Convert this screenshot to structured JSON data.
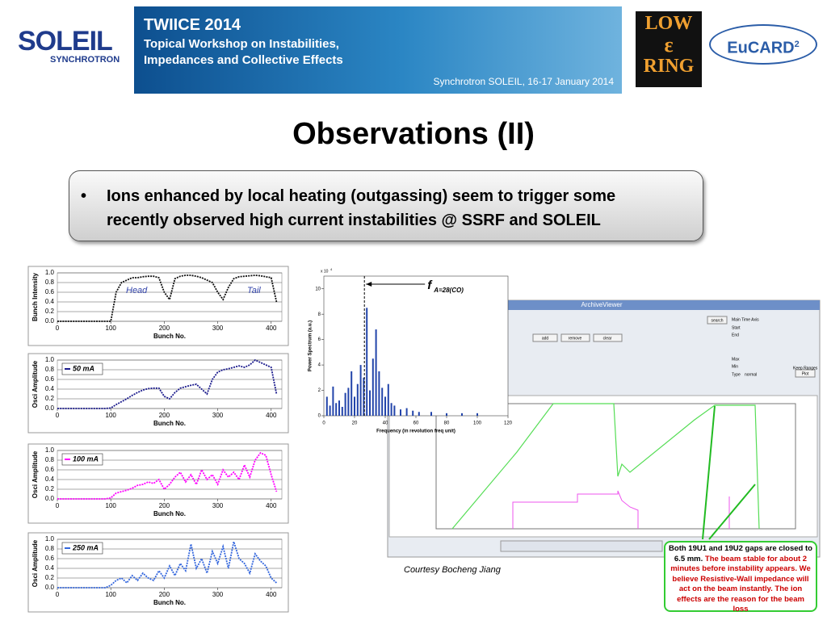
{
  "header": {
    "soleil": "SOLEIL",
    "soleil_sub": "SYNCHROTRON",
    "banner_title": "TWIICE 2014",
    "banner_line1": "Topical Workshop on Instabilities,",
    "banner_line2": "Impedances and Collective Effects",
    "banner_venue": "Synchrotron SOLEIL, 16-17 January 2014",
    "ring_top": "LOW",
    "ring_mid": "ε",
    "ring_bottom": "RING",
    "eucard": "EuCARD",
    "eucard_sup": "2"
  },
  "title": "Observations (II)",
  "bullet": "Ions enhanced by local heating (outgassing) seem to trigger some recently observed high current instabilities @ SSRF and SOLEIL",
  "chart_data": [
    {
      "type": "line",
      "y_label": "Bunch Intensity",
      "x_label": "Bunch No.",
      "annotations": [
        "Head",
        "Tail"
      ],
      "x": [
        0,
        10,
        20,
        30,
        40,
        50,
        60,
        70,
        80,
        90,
        100,
        110,
        120,
        130,
        140,
        150,
        160,
        170,
        180,
        190,
        200,
        210,
        220,
        230,
        240,
        250,
        260,
        270,
        280,
        290,
        300,
        310,
        320,
        330,
        340,
        350,
        360,
        370,
        380,
        390,
        400,
        410
      ],
      "series": [
        {
          "color": "#111111",
          "values": [
            0,
            0,
            0,
            0,
            0,
            0,
            0,
            0,
            0,
            0,
            0,
            0.6,
            0.8,
            0.85,
            0.9,
            0.9,
            0.92,
            0.93,
            0.93,
            0.9,
            0.6,
            0.45,
            0.88,
            0.93,
            0.95,
            0.95,
            0.93,
            0.9,
            0.85,
            0.8,
            0.6,
            0.45,
            0.7,
            0.88,
            0.92,
            0.93,
            0.94,
            0.95,
            0.94,
            0.92,
            0.9,
            0.4
          ]
        }
      ],
      "xlim": [
        0,
        420
      ],
      "xticks": [
        0,
        100,
        200,
        300,
        400
      ],
      "ylim": [
        0,
        1
      ],
      "yticks": [
        {
          "value": 0,
          "label": "0.0"
        },
        0.2,
        0.4,
        0.6,
        0.8,
        {
          "value": 1,
          "label": "1.0"
        }
      ],
      "grid": true
    },
    {
      "type": "line",
      "y_label": "Osci Amplitude",
      "x_label": "Bunch No.",
      "x": [
        0,
        10,
        20,
        30,
        40,
        50,
        60,
        70,
        80,
        90,
        100,
        110,
        120,
        130,
        140,
        150,
        160,
        170,
        180,
        190,
        200,
        210,
        220,
        230,
        240,
        250,
        260,
        270,
        280,
        290,
        300,
        310,
        320,
        330,
        340,
        350,
        360,
        370,
        380,
        390,
        400,
        410
      ],
      "series": [
        {
          "name": "50 mA",
          "color": "#1a1a8c",
          "values": [
            0,
            0,
            0,
            0,
            0,
            0,
            0,
            0,
            0,
            0,
            0.01,
            0.08,
            0.14,
            0.2,
            0.27,
            0.33,
            0.38,
            0.41,
            0.42,
            0.42,
            0.25,
            0.2,
            0.33,
            0.42,
            0.45,
            0.48,
            0.5,
            0.4,
            0.3,
            0.6,
            0.75,
            0.8,
            0.82,
            0.85,
            0.88,
            0.85,
            0.9,
            1.0,
            0.95,
            0.9,
            0.85,
            0.3
          ]
        }
      ],
      "xlim": [
        0,
        420
      ],
      "xticks": [
        0,
        100,
        200,
        300,
        400
      ],
      "ylim": [
        0,
        1
      ],
      "yticks": [
        {
          "value": 0,
          "label": "0.0"
        },
        0.2,
        0.4,
        0.6,
        0.8,
        {
          "value": 1,
          "label": "1.0"
        }
      ],
      "grid": true
    },
    {
      "type": "line",
      "y_label": "Osci Amplitude",
      "x_label": "Bunch No.",
      "x": [
        0,
        10,
        20,
        30,
        40,
        50,
        60,
        70,
        80,
        90,
        100,
        110,
        120,
        130,
        140,
        150,
        160,
        170,
        180,
        190,
        200,
        210,
        220,
        230,
        240,
        250,
        260,
        270,
        280,
        290,
        300,
        310,
        320,
        330,
        340,
        350,
        360,
        370,
        380,
        390,
        400,
        410
      ],
      "series": [
        {
          "name": "100 mA",
          "color": "#ff00ff",
          "values": [
            0,
            0,
            0,
            0,
            0,
            0,
            0,
            0,
            0,
            0,
            0.02,
            0.12,
            0.15,
            0.18,
            0.22,
            0.28,
            0.3,
            0.35,
            0.32,
            0.4,
            0.2,
            0.3,
            0.45,
            0.55,
            0.35,
            0.5,
            0.3,
            0.6,
            0.4,
            0.5,
            0.3,
            0.6,
            0.45,
            0.55,
            0.4,
            0.7,
            0.45,
            0.8,
            0.95,
            0.9,
            0.5,
            0.15
          ]
        }
      ],
      "xlim": [
        0,
        420
      ],
      "xticks": [
        0,
        100,
        200,
        300,
        400
      ],
      "ylim": [
        0,
        1
      ],
      "yticks": [
        {
          "value": 0,
          "label": "0.0"
        },
        0.2,
        0.4,
        0.6,
        0.8,
        {
          "value": 1,
          "label": "1.0"
        }
      ],
      "grid": true
    },
    {
      "type": "line",
      "y_label": "Osci Amplitude",
      "x_label": "Bunch No.",
      "x": [
        0,
        10,
        20,
        30,
        40,
        50,
        60,
        70,
        80,
        90,
        100,
        110,
        120,
        130,
        140,
        150,
        160,
        170,
        180,
        190,
        200,
        210,
        220,
        230,
        240,
        250,
        260,
        270,
        280,
        290,
        300,
        310,
        320,
        330,
        340,
        350,
        360,
        370,
        380,
        390,
        400,
        410
      ],
      "series": [
        {
          "name": "250 mA",
          "color": "#3366dd",
          "values": [
            0,
            0,
            0,
            0,
            0,
            0,
            0,
            0,
            0,
            0,
            0.05,
            0.15,
            0.2,
            0.1,
            0.25,
            0.15,
            0.3,
            0.2,
            0.15,
            0.35,
            0.2,
            0.45,
            0.25,
            0.5,
            0.35,
            0.9,
            0.4,
            0.6,
            0.3,
            0.75,
            0.5,
            0.85,
            0.4,
            0.95,
            0.6,
            0.5,
            0.3,
            0.7,
            0.55,
            0.45,
            0.2,
            0.1
          ]
        }
      ],
      "xlim": [
        0,
        420
      ],
      "xticks": [
        0,
        100,
        200,
        300,
        400
      ],
      "ylim": [
        0,
        1
      ],
      "yticks": [
        {
          "value": 0,
          "label": "0.0"
        },
        0.2,
        0.4,
        0.6,
        0.8,
        {
          "value": 1,
          "label": "1.0"
        }
      ],
      "grid": true
    },
    {
      "type": "bar",
      "y_label": "Power Spectrum (a.u.)",
      "x_label": "Frequency (in revolution freq unit)",
      "y_multiplier": "x 10",
      "y_multiplier_exp": "4",
      "annotation": "f",
      "annotation_sub": "A=28(CO)",
      "x": [
        2,
        4,
        6,
        8,
        10,
        12,
        14,
        16,
        18,
        20,
        22,
        24,
        26,
        28,
        30,
        32,
        34,
        36,
        38,
        40,
        42,
        44,
        46,
        50,
        54,
        58,
        62,
        70,
        80,
        90,
        100
      ],
      "values": [
        1.5,
        0.8,
        2.3,
        1,
        1.2,
        0.7,
        1.8,
        2.2,
        3.5,
        1.5,
        2.5,
        4,
        3,
        8.5,
        2,
        4.5,
        6.8,
        3.5,
        2.2,
        1.5,
        2.5,
        1,
        0.8,
        0.5,
        0.6,
        0.4,
        0.3,
        0.3,
        0.2,
        0.2,
        0.2
      ],
      "color": "#2244aa",
      "xlim": [
        0,
        120
      ],
      "xticks": [
        0,
        20,
        40,
        60,
        80,
        100,
        120
      ],
      "ylim": [
        0,
        11
      ],
      "yticks": [
        0,
        2,
        4,
        6,
        8,
        10
      ]
    }
  ],
  "screenshot": {
    "window_title": "ArchiveViewer",
    "buttons": [
      "search",
      "add",
      "remove",
      "clear",
      "Plot"
    ],
    "fields": [
      "Main Time Axis",
      "Start",
      "End",
      "Max",
      "Min",
      "Type",
      "normal",
      "Keep Ranges"
    ],
    "credit": "Courtesy Bocheng Jiang",
    "note_black": "Both 19U1 and 19U2 gaps are closed to 6.5 mm.",
    "note_red": "The beam stable for about 2 minutes before instability appears. We believe Resistive-Wall impedance will act on the beam instantly. The ion effects are the reason for the beam loss"
  }
}
